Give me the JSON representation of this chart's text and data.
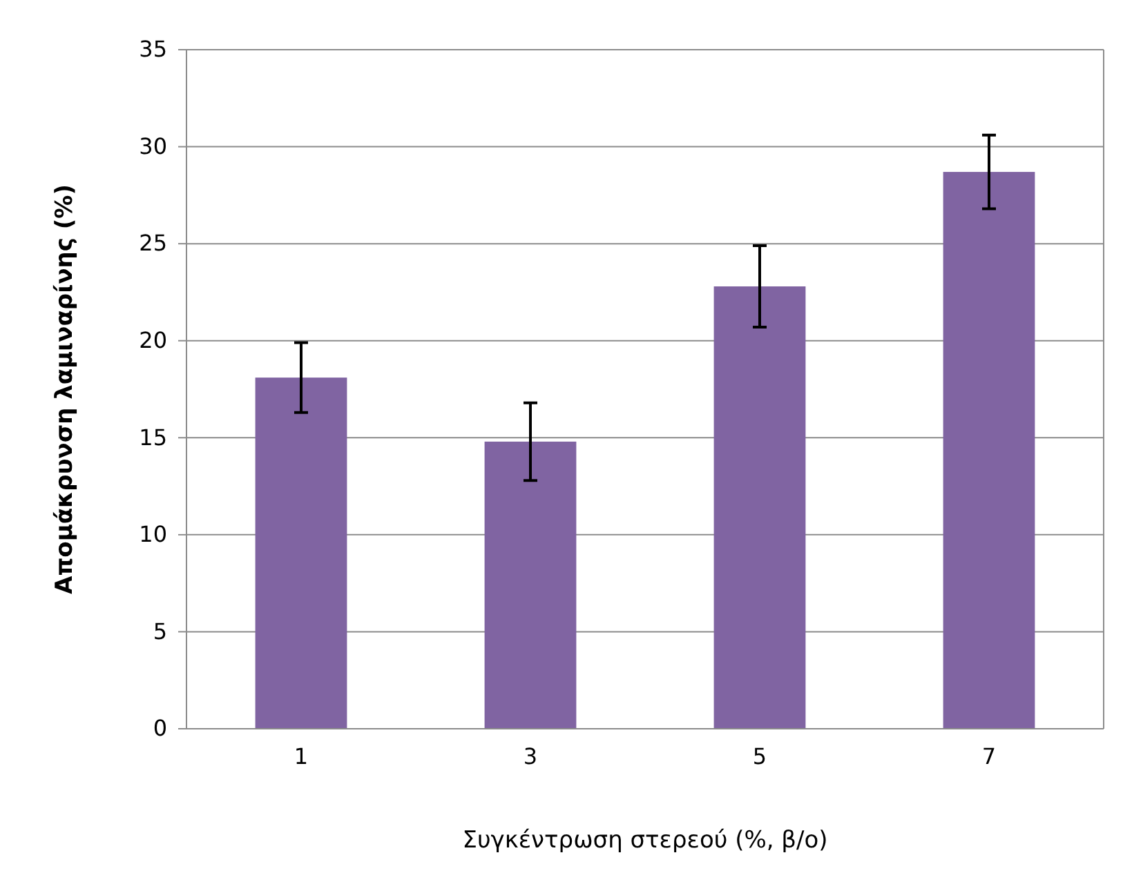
{
  "chart_data": {
    "type": "bar",
    "xlabel": "Συγκέντρωση στερεού (%, β/ο)",
    "ylabel": "Απομάκρυνση λαμιναρίνης (%)",
    "categories": [
      "1",
      "3",
      "5",
      "7"
    ],
    "values": [
      18.1,
      14.8,
      22.8,
      28.7
    ],
    "errors": [
      1.8,
      2.0,
      2.1,
      1.9
    ],
    "color": "#8064a2",
    "ylim": [
      0,
      35
    ],
    "yticks": [
      0,
      5,
      10,
      15,
      20,
      25,
      30,
      35
    ],
    "grid": "y"
  }
}
